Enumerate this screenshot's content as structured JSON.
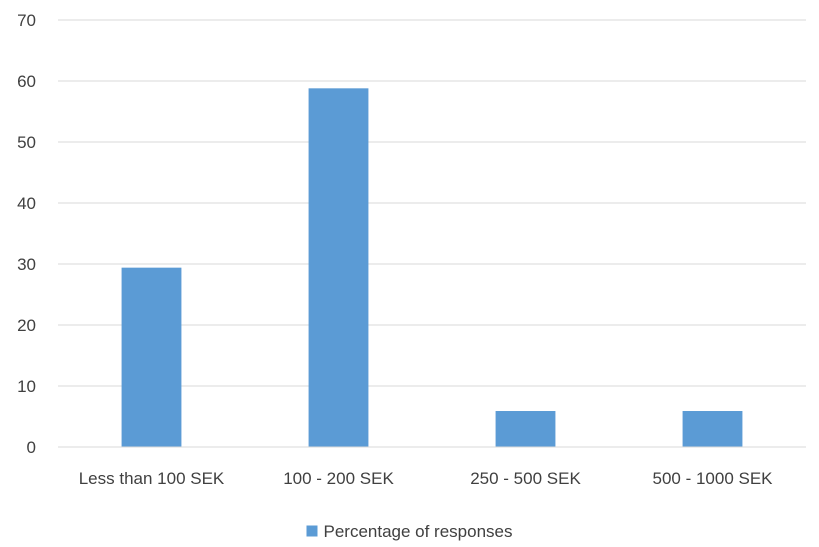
{
  "chart_data": {
    "type": "bar",
    "categories": [
      "Less than 100 SEK",
      "100 - 200 SEK",
      "250 - 500 SEK",
      "500 - 1000 SEK"
    ],
    "series": [
      {
        "name": "Percentage of responses",
        "values": [
          29.4,
          58.8,
          5.9,
          5.9
        ],
        "color": "#5b9bd5"
      }
    ],
    "ylim": [
      0,
      70
    ],
    "yticks": [
      "0",
      "10",
      "20",
      "30",
      "40",
      "50",
      "60",
      "70"
    ],
    "grid": true,
    "legend_position": "bottom",
    "title": "",
    "xlabel": "",
    "ylabel": ""
  }
}
